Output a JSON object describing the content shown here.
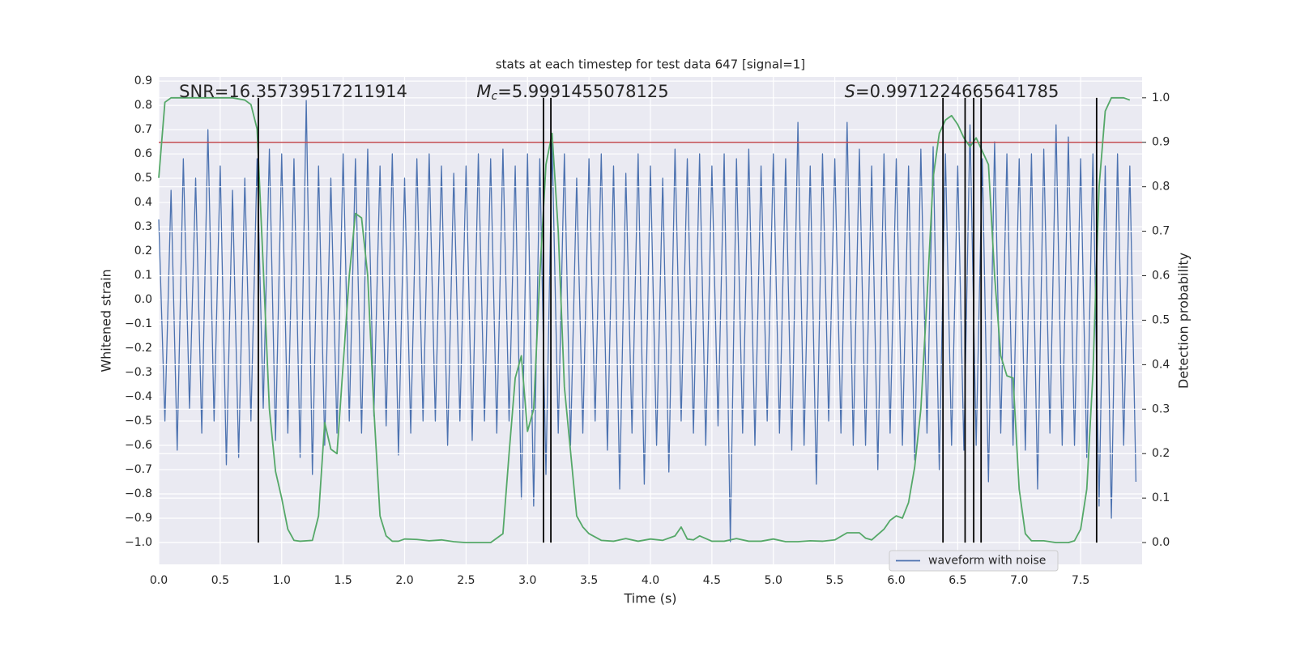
{
  "chart_data": {
    "type": "line",
    "title": "stats at each timestep for test data 647 [signal=1]",
    "xlabel": "Time (s)",
    "ylabel": "Whitened strain",
    "y2label": "Detection probability",
    "annotations": [
      {
        "text": "SNR=16.35739517211914"
      },
      {
        "symbol": "M",
        "sub": "c",
        "text": "=5.9991455078125"
      },
      {
        "symbol": "S",
        "text": "=0.9971224665641785"
      }
    ],
    "xlim": [
      0,
      8.0
    ],
    "xticks": [
      {
        "value": 0,
        "label": "0.0"
      },
      0.5,
      {
        "value": 1,
        "label": "1.0"
      },
      1.5,
      {
        "value": 2,
        "label": "2.0"
      },
      2.5,
      {
        "value": 3,
        "label": "3.0"
      },
      3.5,
      {
        "value": 4,
        "label": "4.0"
      },
      4.5,
      {
        "value": 5,
        "label": "5.0"
      },
      5.5,
      {
        "value": 6,
        "label": "6.0"
      },
      6.5,
      {
        "value": 7,
        "label": "7.0"
      },
      7.5
    ],
    "ylim": [
      -1.09,
      0.917
    ],
    "yticks": [
      {
        "value": -1.0,
        "label": "−1.0"
      },
      {
        "value": -0.9,
        "label": "−0.9"
      },
      {
        "value": -0.8,
        "label": "−0.8"
      },
      {
        "value": -0.7,
        "label": "−0.7"
      },
      {
        "value": -0.6,
        "label": "−0.6"
      },
      {
        "value": -0.5,
        "label": "−0.5"
      },
      {
        "value": -0.4,
        "label": "−0.4"
      },
      {
        "value": -0.3,
        "label": "−0.3"
      },
      {
        "value": -0.2,
        "label": "−0.2"
      },
      {
        "value": -0.1,
        "label": "−0.1"
      },
      {
        "value": 0,
        "label": "0.0"
      },
      0.1,
      0.2,
      0.3,
      0.4,
      0.5,
      0.6,
      0.7,
      0.8,
      0.9
    ],
    "y2lim": [
      -0.049,
      1.047
    ],
    "y2ticks": [
      {
        "value": 0,
        "label": "0.0"
      },
      0.1,
      0.2,
      0.3,
      0.4,
      0.5,
      0.6,
      0.7,
      0.8,
      0.9,
      {
        "value": 1,
        "label": "1.0"
      }
    ],
    "grid": true,
    "legend": "lower right",
    "threshold": {
      "value": 0.9,
      "axis": "y2",
      "color": "#c44e52"
    },
    "vlines": {
      "x": [
        0.81,
        3.13,
        3.19,
        6.38,
        6.56,
        6.63,
        6.69,
        7.63
      ],
      "color": "#000000",
      "axis": "y2"
    },
    "series": [
      {
        "name": "waveform with noise",
        "color": "#4c72b0",
        "x": [
          0,
          0.05,
          0.1,
          0.15,
          0.2,
          0.25,
          0.3,
          0.35,
          0.4,
          0.45,
          0.5,
          0.55,
          0.6,
          0.65,
          0.7,
          0.75,
          0.8,
          0.85,
          0.9,
          0.95,
          1,
          1.05,
          1.1,
          1.15,
          1.2,
          1.25,
          1.3,
          1.35,
          1.4,
          1.45,
          1.5,
          1.55,
          1.6,
          1.65,
          1.7,
          1.75,
          1.8,
          1.85,
          1.9,
          1.95,
          2,
          2.05,
          2.1,
          2.15,
          2.2,
          2.25,
          2.3,
          2.35,
          2.4,
          2.45,
          2.5,
          2.55,
          2.6,
          2.65,
          2.7,
          2.75,
          2.8,
          2.85,
          2.9,
          2.95,
          3,
          3.05,
          3.1,
          3.15,
          3.2,
          3.25,
          3.3,
          3.35,
          3.4,
          3.45,
          3.5,
          3.55,
          3.6,
          3.65,
          3.7,
          3.75,
          3.8,
          3.85,
          3.9,
          3.95,
          4,
          4.05,
          4.1,
          4.15,
          4.2,
          4.25,
          4.3,
          4.35,
          4.4,
          4.45,
          4.5,
          4.55,
          4.6,
          4.65,
          4.7,
          4.75,
          4.8,
          4.85,
          4.9,
          4.95,
          5,
          5.05,
          5.1,
          5.15,
          5.2,
          5.25,
          5.3,
          5.35,
          5.4,
          5.45,
          5.5,
          5.55,
          5.6,
          5.65,
          5.7,
          5.75,
          5.8,
          5.85,
          5.9,
          5.95,
          6,
          6.05,
          6.1,
          6.15,
          6.2,
          6.25,
          6.3,
          6.35,
          6.4,
          6.45,
          6.5,
          6.55,
          6.6,
          6.65,
          6.7,
          6.75,
          6.8,
          6.85,
          6.9,
          6.95,
          7,
          7.05,
          7.1,
          7.15,
          7.2,
          7.25,
          7.3,
          7.35,
          7.4,
          7.45,
          7.5,
          7.55,
          7.6,
          7.65,
          7.7,
          7.75,
          7.8,
          7.85,
          7.9,
          7.95
        ],
        "values": [
          0.33,
          -0.5,
          0.45,
          -0.62,
          0.58,
          -0.45,
          0.5,
          -0.55,
          0.7,
          -0.5,
          0.55,
          -0.68,
          0.45,
          -0.65,
          0.5,
          -0.5,
          0.58,
          -0.45,
          0.62,
          -0.58,
          0.6,
          -0.55,
          0.58,
          -0.65,
          0.82,
          -0.72,
          0.55,
          -0.6,
          0.5,
          -0.55,
          0.6,
          -0.5,
          0.58,
          -0.55,
          0.62,
          -0.48,
          0.55,
          -0.52,
          0.6,
          -0.64,
          0.5,
          -0.55,
          0.58,
          -0.5,
          0.6,
          -0.5,
          0.55,
          -0.6,
          0.52,
          -0.5,
          0.55,
          -0.58,
          0.6,
          -0.5,
          0.58,
          -0.55,
          0.62,
          -0.5,
          0.55,
          -0.82,
          0.6,
          -0.85,
          0.58,
          -0.72,
          0.65,
          -0.55,
          0.6,
          -0.6,
          0.5,
          -0.55,
          0.58,
          -0.5,
          0.6,
          -0.62,
          0.55,
          -0.78,
          0.52,
          -0.55,
          0.6,
          -0.76,
          0.55,
          -0.6,
          0.5,
          -0.71,
          0.62,
          -0.5,
          0.58,
          -0.55,
          0.6,
          -0.6,
          0.55,
          -0.52,
          0.6,
          -1.0,
          0.58,
          -0.55,
          0.62,
          -0.6,
          0.55,
          -0.5,
          0.6,
          -0.55,
          0.58,
          -0.62,
          0.73,
          -0.6,
          0.55,
          -0.76,
          0.6,
          -0.5,
          0.58,
          -0.55,
          0.73,
          -0.6,
          0.62,
          -0.6,
          0.55,
          -0.7,
          0.6,
          -0.55,
          0.58,
          -0.6,
          0.55,
          -0.66,
          0.62,
          -0.55,
          0.63,
          -0.7,
          0.6,
          -0.6,
          0.55,
          -0.62,
          0.72,
          -0.6,
          0.58,
          -0.75,
          0.65,
          -0.55,
          0.6,
          -0.6,
          0.58,
          -0.62,
          0.6,
          -0.78,
          0.62,
          -0.55,
          0.72,
          -0.6,
          0.67,
          -0.6,
          0.58,
          -0.65,
          0.6,
          -0.85,
          0.55,
          -0.9,
          0.6,
          -0.6,
          0.55,
          -0.75
        ]
      },
      {
        "axis": "y2",
        "color": "#55a868",
        "x": [
          0,
          0.05,
          0.1,
          0.2,
          0.3,
          0.4,
          0.5,
          0.6,
          0.7,
          0.75,
          0.8,
          0.85,
          0.9,
          0.95,
          1,
          1.05,
          1.1,
          1.15,
          1.25,
          1.3,
          1.35,
          1.4,
          1.45,
          1.5,
          1.55,
          1.6,
          1.65,
          1.7,
          1.75,
          1.8,
          1.85,
          1.9,
          1.95,
          2,
          2.1,
          2.2,
          2.3,
          2.4,
          2.5,
          2.6,
          2.7,
          2.8,
          2.85,
          2.9,
          2.95,
          3,
          3.05,
          3.1,
          3.15,
          3.2,
          3.25,
          3.3,
          3.4,
          3.45,
          3.5,
          3.6,
          3.7,
          3.8,
          3.9,
          4,
          4.1,
          4.2,
          4.25,
          4.3,
          4.35,
          4.4,
          4.5,
          4.6,
          4.7,
          4.8,
          4.9,
          5,
          5.1,
          5.2,
          5.3,
          5.4,
          5.5,
          5.6,
          5.7,
          5.75,
          5.8,
          5.9,
          5.95,
          6,
          6.05,
          6.1,
          6.15,
          6.2,
          6.25,
          6.3,
          6.35,
          6.4,
          6.45,
          6.5,
          6.55,
          6.6,
          6.65,
          6.7,
          6.75,
          6.8,
          6.85,
          6.9,
          6.95,
          7,
          7.05,
          7.1,
          7.2,
          7.3,
          7.4,
          7.45,
          7.5,
          7.55,
          7.6,
          7.65,
          7.7,
          7.75,
          7.8,
          7.85,
          7.9
        ],
        "values": [
          0.82,
          0.99,
          1.0,
          1.0,
          1.0,
          1.0,
          1.0,
          1.0,
          0.995,
          0.985,
          0.93,
          0.62,
          0.3,
          0.16,
          0.1,
          0.03,
          0.005,
          0.003,
          0.005,
          0.06,
          0.27,
          0.21,
          0.2,
          0.4,
          0.6,
          0.74,
          0.73,
          0.6,
          0.3,
          0.06,
          0.015,
          0.003,
          0.003,
          0.008,
          0.007,
          0.004,
          0.006,
          0.002,
          0.0,
          0.0,
          0.0,
          0.02,
          0.2,
          0.37,
          0.42,
          0.25,
          0.3,
          0.6,
          0.85,
          0.92,
          0.7,
          0.35,
          0.06,
          0.035,
          0.02,
          0.005,
          0.003,
          0.009,
          0.003,
          0.008,
          0.005,
          0.015,
          0.035,
          0.008,
          0.006,
          0.015,
          0.003,
          0.003,
          0.009,
          0.003,
          0.003,
          0.008,
          0.002,
          0.002,
          0.004,
          0.003,
          0.006,
          0.022,
          0.022,
          0.01,
          0.006,
          0.03,
          0.05,
          0.06,
          0.055,
          0.09,
          0.17,
          0.3,
          0.55,
          0.82,
          0.92,
          0.95,
          0.96,
          0.94,
          0.91,
          0.89,
          0.91,
          0.88,
          0.85,
          0.6,
          0.42,
          0.375,
          0.37,
          0.12,
          0.02,
          0.004,
          0.004,
          0.0,
          0.0,
          0.004,
          0.03,
          0.12,
          0.38,
          0.8,
          0.97,
          1.0,
          1.0,
          1.0,
          0.995
        ]
      }
    ]
  }
}
